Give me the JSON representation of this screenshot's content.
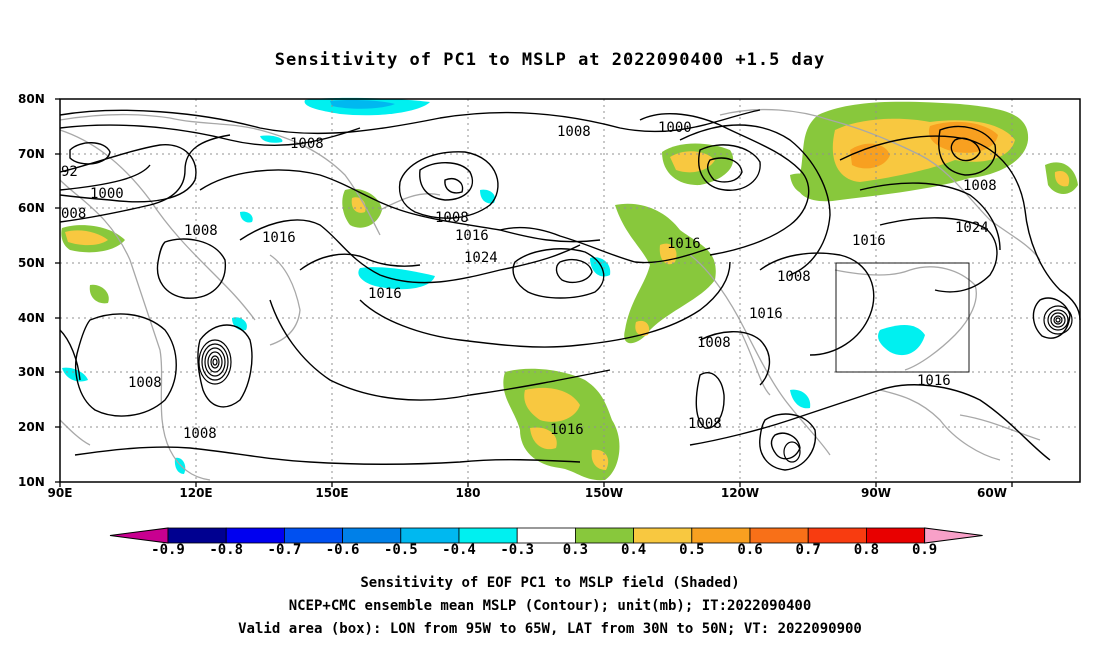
{
  "title": "Sensitivity of PC1 to MSLP at 2022090400 +1.5 day",
  "lat_labels": [
    "80N",
    "70N",
    "60N",
    "50N",
    "40N",
    "30N",
    "20N",
    "10N"
  ],
  "lon_labels": [
    "90E",
    "120E",
    "150E",
    "180",
    "150W",
    "120W",
    "90W",
    "60W"
  ],
  "contour_labels": [
    {
      "text": "1008"
    },
    {
      "text": "1000"
    },
    {
      "text": "1008"
    },
    {
      "text": "92"
    },
    {
      "text": "1000"
    },
    {
      "text": "008"
    },
    {
      "text": "1008"
    },
    {
      "text": "1016"
    },
    {
      "text": "1008"
    },
    {
      "text": "1016"
    },
    {
      "text": "1024"
    },
    {
      "text": "1016"
    },
    {
      "text": "1016"
    },
    {
      "text": "1008"
    },
    {
      "text": "1016"
    },
    {
      "text": "1024"
    },
    {
      "text": "1008"
    },
    {
      "text": "1016"
    },
    {
      "text": "1008"
    },
    {
      "text": "1016"
    },
    {
      "text": "1008"
    },
    {
      "text": "1008"
    },
    {
      "text": "1008"
    },
    {
      "text": "1016"
    }
  ],
  "colorbar": {
    "labels": [
      "-0.9",
      "-0.8",
      "-0.7",
      "-0.6",
      "-0.5",
      "-0.4",
      "-0.3",
      "0.3",
      "0.4",
      "0.5",
      "0.6",
      "0.7",
      "0.8",
      "0.9"
    ],
    "colors": [
      "#000090",
      "#0000f0",
      "#0050f0",
      "#0080e8",
      "#00b8f0",
      "#00f0f0",
      "#ffffff",
      "#88c83c",
      "#f8c840",
      "#f8a020",
      "#f87018",
      "#f83c10",
      "#e80000"
    ],
    "low_end_color": "#c80090",
    "high_end_color": "#f8a0c8"
  },
  "captions": {
    "line1": "Sensitivity of EOF PC1 to MSLP field (Shaded)",
    "line2": "NCEP+CMC ensemble mean MSLP (Contour); unit(mb); IT:2022090400",
    "line3": "Valid area (box): LON from 95W to 65W, LAT from 30N to 50N; VT: 2022090900"
  }
}
